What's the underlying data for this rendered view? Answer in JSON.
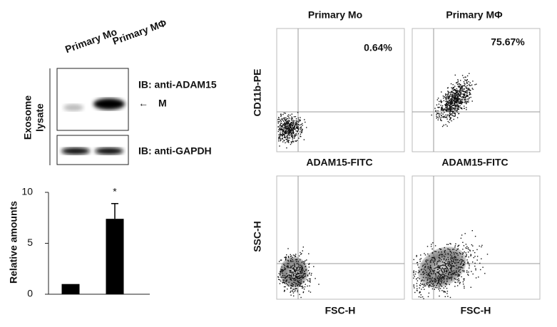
{
  "blot": {
    "lanes": [
      "Primary Mo",
      "Primary MΦ"
    ],
    "side_label": [
      "Exosome",
      "lysate"
    ],
    "probe_top": "IB: anti-ADAM15",
    "band_marker": "M",
    "probe_bottom": "IB: anti-GAPDH"
  },
  "chart_data": {
    "type": "bar",
    "ylabel": "Relative amounts",
    "categories": [
      null,
      null
    ],
    "values": [
      1,
      7.4
    ],
    "errors": [
      null,
      1.5
    ],
    "color": "#000000",
    "annotation": "*",
    "ylim": [
      0,
      10
    ],
    "yticks": [
      0,
      5,
      10
    ]
  },
  "flow": {
    "columns": [
      "Primary Mo",
      "Primary MΦ"
    ],
    "top": {
      "ylabel": "CD11b-PE",
      "xlabel": "ADAM15-FITC",
      "percentages": [
        "0.64%",
        "75.67%"
      ]
    },
    "bottom": {
      "ylabel": "SSC-H",
      "xlabel": "FSC-H"
    }
  }
}
